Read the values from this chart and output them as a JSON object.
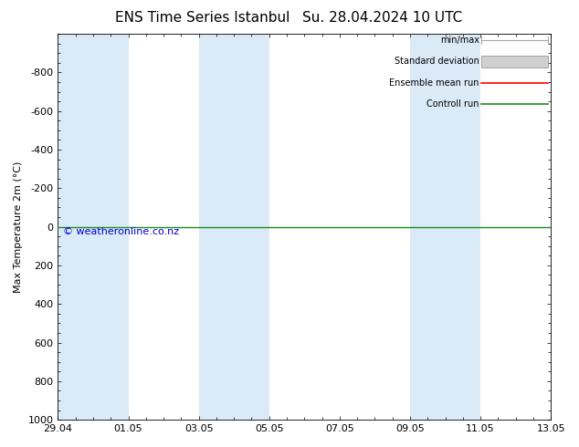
{
  "title": "ENS Time Series Istanbul",
  "subtitle": "Su. 28.04.2024 10 UTC",
  "ylabel": "Max Temperature 2m (°C)",
  "ylim_bottom": 1000,
  "ylim_top": -1000,
  "yticks": [
    -800,
    -600,
    -400,
    -200,
    0,
    200,
    400,
    600,
    800,
    1000
  ],
  "xtick_labels": [
    "29.04",
    "01.05",
    "03.05",
    "05.05",
    "07.05",
    "09.05",
    "11.05",
    "13.05"
  ],
  "xtick_positions": [
    0,
    2,
    4,
    6,
    8,
    10,
    12,
    14
  ],
  "shaded_spans": [
    [
      0,
      2
    ],
    [
      4,
      5
    ],
    [
      5,
      6
    ],
    [
      10,
      11
    ],
    [
      11,
      12
    ]
  ],
  "shaded_color": "#daeaf7",
  "background_color": "#ffffff",
  "hline_y": 0,
  "hline_color": "#228b22",
  "hline_linewidth": 1.0,
  "copyright_text": "© weatheronline.co.nz",
  "copyright_color": "#0000cc",
  "copyright_fontsize": 8,
  "legend_labels": [
    "min/max",
    "Standard deviation",
    "Ensemble mean run",
    "Controll run"
  ],
  "legend_colors": [
    "#aaaaaa",
    "#cccccc",
    "#ff0000",
    "#228b22"
  ],
  "title_fontsize": 11,
  "axis_fontsize": 8,
  "tick_fontsize": 8
}
